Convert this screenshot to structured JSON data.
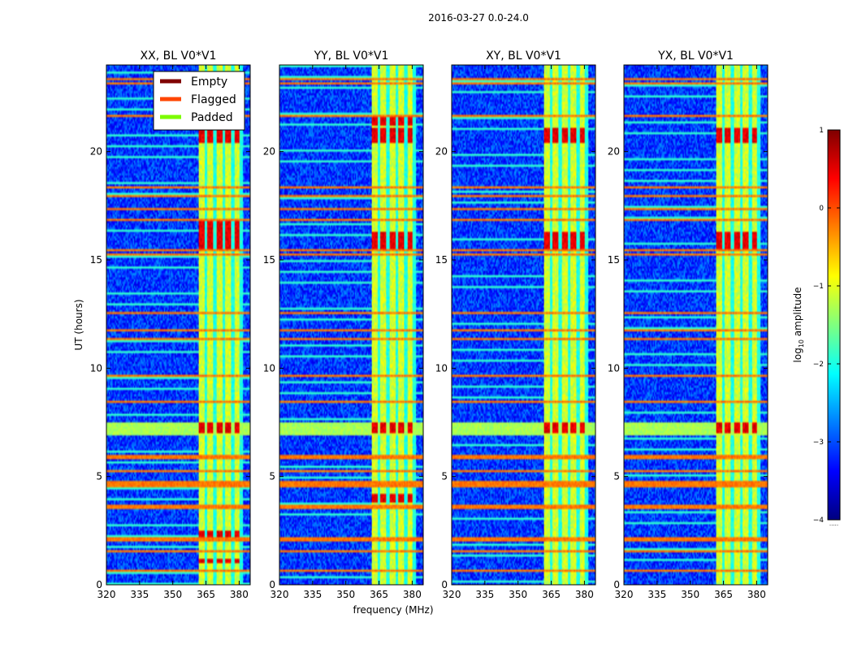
{
  "chart_data": {
    "type": "heatmap",
    "suptitle": "2016-03-27 0.0-24.0",
    "xlabel": "frequency (MHz)",
    "ylabel": "UT (hours)",
    "xlim": [
      320,
      385
    ],
    "ylim": [
      0,
      24
    ],
    "xticks": [
      320,
      335,
      350,
      365,
      380
    ],
    "yticks": [
      0,
      5,
      10,
      15,
      20
    ],
    "colorbar": {
      "label": "log10 amplitude",
      "label_base": "log",
      "label_sub": "10",
      "label_rest": " amplitude",
      "range": [
        -4,
        1
      ],
      "ticks": [
        1,
        0,
        -1,
        -2,
        -3,
        -4
      ],
      "tick_labels": [
        "1",
        "0",
        "−1",
        "−2",
        "−3",
        "−4"
      ],
      "colormap": "jet",
      "cmap_stops": [
        "#00007f",
        "#0000ff",
        "#007fff",
        "#00ffff",
        "#7fff7f",
        "#ffff00",
        "#ff7f00",
        "#ff0000",
        "#7f0000"
      ],
      "extend_mark": "....."
    },
    "legend": {
      "placement": "upper-right of first panel",
      "entries": [
        {
          "label": "Empty",
          "color": "#800000"
        },
        {
          "label": "Flagged",
          "color": "#ff4500"
        },
        {
          "label": "Padded",
          "color": "#7cfc00"
        }
      ]
    },
    "panels": [
      {
        "title": "XX, BL V0*V1",
        "polarization": "XX"
      },
      {
        "title": "YY, BL V0*V1",
        "polarization": "YY"
      },
      {
        "title": "XY, BL V0*V1",
        "polarization": "XY"
      },
      {
        "title": "YX, BL V0*V1",
        "polarization": "YX"
      }
    ],
    "background_log10": -3.1,
    "rfi_band_mhz": [
      361.5,
      382
    ],
    "rfi_channels_mhz": [
      363,
      367,
      371,
      375,
      379
    ],
    "flagged_rows_ut": [
      0.65,
      1.55,
      2.1,
      3.6,
      4.6,
      4.75,
      5.2,
      5.9,
      8.4,
      9.7,
      11.3,
      11.75,
      12.5,
      15.25,
      15.45,
      16.9,
      17.35,
      17.95,
      18.2,
      18.4,
      20.2,
      21.6,
      23.1,
      23.4
    ],
    "gap_ut_range": [
      6.9,
      7.55
    ]
  }
}
